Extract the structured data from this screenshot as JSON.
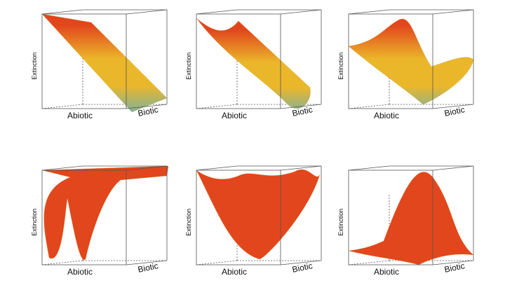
{
  "chart_data": [
    {
      "type": "surface3d",
      "shape": "plane-descending",
      "xlabel": "Abiotic",
      "ylabel": "Biotic",
      "zlabel": "Extinction"
    },
    {
      "type": "surface3d",
      "shape": "trough",
      "xlabel": "Abiotic",
      "ylabel": "Biotic",
      "zlabel": "Extinction"
    },
    {
      "type": "surface3d",
      "shape": "sigmoid-ridge",
      "xlabel": "Abiotic",
      "ylabel": "Biotic",
      "zlabel": "Extinction"
    },
    {
      "type": "surface3d",
      "shape": "double-well",
      "xlabel": "Abiotic",
      "ylabel": "Biotic",
      "zlabel": "Extinction"
    },
    {
      "type": "surface3d",
      "shape": "bowl",
      "xlabel": "Abiotic",
      "ylabel": "Biotic",
      "zlabel": "Extinction"
    },
    {
      "type": "surface3d",
      "shape": "dome",
      "xlabel": "Abiotic",
      "ylabel": "Biotic",
      "zlabel": "Extinction"
    }
  ],
  "colors": {
    "high": "#e2461d",
    "mid": "#ebb72a",
    "low": "#5ab0c6",
    "box": "#555555"
  }
}
